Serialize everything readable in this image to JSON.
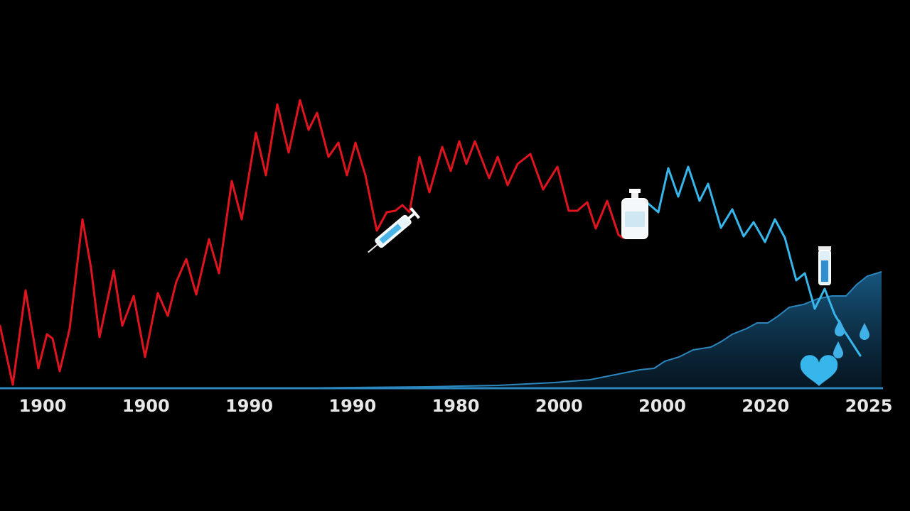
{
  "chart_data": {
    "type": "line",
    "title": "",
    "xlabel": "",
    "ylabel": "",
    "x_tick_labels": [
      "1900",
      "1900",
      "1990",
      "1990",
      "1980",
      "2000",
      "2000",
      "2020",
      "2025"
    ],
    "x_range": [
      0,
      1240
    ],
    "y_range": [
      0,
      420
    ],
    "grid": false,
    "legend": "none",
    "series": [
      {
        "color": "#e0141e",
        "points": [
          [
            0,
            88
          ],
          [
            18,
            5
          ],
          [
            36,
            138
          ],
          [
            54,
            28
          ],
          [
            66,
            76
          ],
          [
            74,
            70
          ],
          [
            84,
            24
          ],
          [
            98,
            84
          ],
          [
            116,
            238
          ],
          [
            128,
            170
          ],
          [
            140,
            72
          ],
          [
            160,
            166
          ],
          [
            172,
            88
          ],
          [
            188,
            130
          ],
          [
            204,
            44
          ],
          [
            222,
            134
          ],
          [
            236,
            102
          ],
          [
            248,
            150
          ],
          [
            262,
            182
          ],
          [
            276,
            132
          ],
          [
            294,
            210
          ],
          [
            308,
            162
          ],
          [
            326,
            292
          ],
          [
            340,
            238
          ],
          [
            360,
            360
          ],
          [
            374,
            300
          ],
          [
            390,
            400
          ],
          [
            406,
            332
          ],
          [
            422,
            406
          ],
          [
            434,
            364
          ],
          [
            446,
            388
          ],
          [
            462,
            326
          ],
          [
            476,
            346
          ],
          [
            488,
            300
          ],
          [
            500,
            346
          ],
          [
            514,
            300
          ],
          [
            530,
            222
          ],
          [
            544,
            248
          ],
          [
            556,
            250
          ],
          [
            566,
            258
          ],
          [
            576,
            248
          ],
          [
            590,
            326
          ],
          [
            604,
            276
          ],
          [
            622,
            340
          ],
          [
            634,
            306
          ],
          [
            646,
            348
          ],
          [
            656,
            316
          ],
          [
            668,
            348
          ],
          [
            688,
            296
          ],
          [
            700,
            326
          ],
          [
            714,
            286
          ],
          [
            728,
            316
          ],
          [
            746,
            330
          ],
          [
            764,
            280
          ],
          [
            784,
            312
          ],
          [
            800,
            250
          ],
          [
            812,
            250
          ],
          [
            826,
            262
          ],
          [
            838,
            225
          ],
          [
            854,
            264
          ],
          [
            870,
            216
          ],
          [
            876,
            212
          ]
        ]
      },
      {
        "color": "#36b6ea",
        "points": [
          [
            912,
            260
          ],
          [
            926,
            248
          ],
          [
            940,
            310
          ],
          [
            954,
            270
          ],
          [
            968,
            312
          ],
          [
            984,
            264
          ],
          [
            996,
            288
          ],
          [
            1014,
            226
          ],
          [
            1030,
            252
          ],
          [
            1046,
            214
          ],
          [
            1060,
            234
          ],
          [
            1076,
            206
          ],
          [
            1090,
            238
          ],
          [
            1104,
            212
          ],
          [
            1120,
            152
          ],
          [
            1132,
            162
          ],
          [
            1146,
            112
          ],
          [
            1160,
            140
          ],
          [
            1174,
            104
          ],
          [
            1188,
            80
          ],
          [
            1210,
            46
          ]
        ]
      },
      {
        "color": "#2a86bd",
        "area": true,
        "points": [
          [
            0,
            0
          ],
          [
            400,
            0
          ],
          [
            600,
            2
          ],
          [
            700,
            4
          ],
          [
            780,
            8
          ],
          [
            830,
            12
          ],
          [
            860,
            18
          ],
          [
            880,
            22
          ],
          [
            900,
            26
          ],
          [
            920,
            28
          ],
          [
            935,
            38
          ],
          [
            955,
            44
          ],
          [
            975,
            54
          ],
          [
            1000,
            58
          ],
          [
            1015,
            66
          ],
          [
            1030,
            76
          ],
          [
            1050,
            84
          ],
          [
            1065,
            92
          ],
          [
            1080,
            92
          ],
          [
            1095,
            102
          ],
          [
            1110,
            114
          ],
          [
            1130,
            118
          ],
          [
            1150,
            126
          ],
          [
            1170,
            130
          ],
          [
            1190,
            130
          ],
          [
            1205,
            146
          ],
          [
            1220,
            158
          ],
          [
            1240,
            164
          ]
        ]
      }
    ],
    "icons": [
      "syringe-icon",
      "medicine-bottle-icon",
      "vial-icon",
      "water-drop-icon",
      "heart-icon"
    ],
    "colors": {
      "background": "#000000",
      "axis": "#2a86bd",
      "labels": "#e8e8e8"
    }
  }
}
